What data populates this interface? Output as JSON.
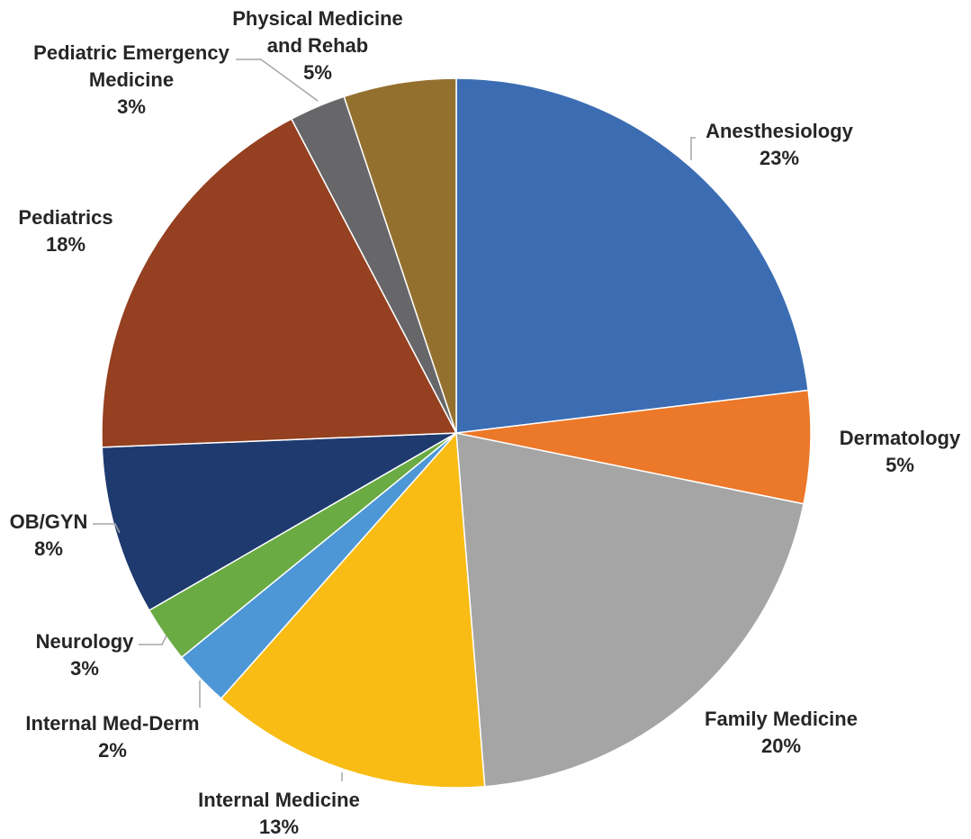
{
  "chart_data": {
    "type": "pie",
    "start_angle_deg": 0,
    "direction": "clockwise",
    "slices": [
      {
        "name": "Anesthesiology",
        "label_lines": [
          "Anesthesiology"
        ],
        "percent_label": "23%",
        "value": 22.5,
        "color": "#3c6db3"
      },
      {
        "name": "Dermatology",
        "label_lines": [
          "Dermatology"
        ],
        "percent_label": "5%",
        "value": 5.0,
        "color": "#ec7829"
      },
      {
        "name": "Family Medicine",
        "label_lines": [
          "Family Medicine"
        ],
        "percent_label": "20%",
        "value": 20.0,
        "color": "#a5a5a5"
      },
      {
        "name": "Internal Medicine",
        "label_lines": [
          "Internal Medicine"
        ],
        "percent_label": "13%",
        "value": 12.5,
        "color": "#f9bc15"
      },
      {
        "name": "Internal Med-Derm",
        "label_lines": [
          "Internal Med-Derm"
        ],
        "percent_label": "2%",
        "value": 2.5,
        "color": "#4d97d6"
      },
      {
        "name": "Neurology",
        "label_lines": [
          "Neurology"
        ],
        "percent_label": "3%",
        "value": 2.5,
        "color": "#6aab43"
      },
      {
        "name": "OB/GYN",
        "label_lines": [
          "OB/GYN"
        ],
        "percent_label": "8%",
        "value": 7.5,
        "color": "#1e3a6f"
      },
      {
        "name": "Pediatrics",
        "label_lines": [
          "Pediatrics"
        ],
        "percent_label": "18%",
        "value": 17.5,
        "color": "#954020"
      },
      {
        "name": "Pediatric Emergency Medicine",
        "label_lines": [
          "Pediatric Emergency",
          "Medicine"
        ],
        "percent_label": "3%",
        "value": 2.5,
        "color": "#676769"
      },
      {
        "name": "Physical Medicine and Rehab",
        "label_lines": [
          "Physical Medicine",
          "and Rehab"
        ],
        "percent_label": "5%",
        "value": 5.0,
        "color": "#93702e"
      }
    ]
  }
}
